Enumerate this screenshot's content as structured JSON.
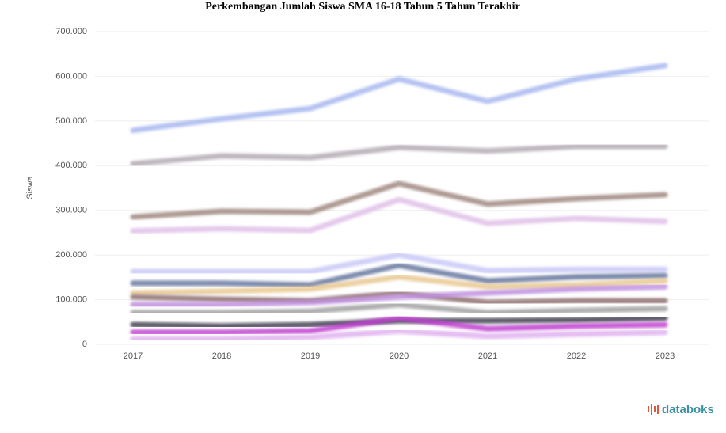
{
  "chart_data": {
    "type": "line",
    "title": "Perkembangan Jumlah Siswa SMA 16-18 Tahun 5 Tahun Terakhir",
    "y_label": "Siswa",
    "logo": "databoks",
    "categories": [
      "2017",
      "2018",
      "2019",
      "2020",
      "2021",
      "2022",
      "2023"
    ],
    "ylim": [
      0,
      700000
    ],
    "yticks": [
      0,
      {
        "value": 100000,
        "label": "100.000"
      },
      {
        "value": 200000,
        "label": "200.000"
      },
      {
        "value": 300000,
        "label": "300.000"
      },
      {
        "value": 400000,
        "label": "400.000"
      },
      {
        "value": 500000,
        "label": "500.000"
      },
      {
        "value": 600000,
        "label": "600.000"
      },
      {
        "value": 700000,
        "label": "700.000"
      }
    ],
    "grid": true,
    "series": [
      {
        "color": "#a8b8f0",
        "values": [
          479000,
          505000,
          528000,
          594000,
          544000,
          594000,
          624000
        ]
      },
      {
        "color": "#b4acb4",
        "values": [
          404000,
          422000,
          418000,
          441000,
          433000,
          443000,
          443000
        ]
      },
      {
        "color": "#a08880",
        "values": [
          285000,
          298000,
          296000,
          360000,
          314000,
          326000,
          335000
        ]
      },
      {
        "color": "#e0c0e8",
        "values": [
          254000,
          259000,
          255000,
          324000,
          271000,
          282000,
          275000
        ]
      },
      {
        "color": "#c8c8f8",
        "values": [
          163000,
          163000,
          163000,
          200000,
          165000,
          168000,
          168000
        ]
      },
      {
        "color": "#6878a0",
        "values": [
          137000,
          137000,
          133000,
          177000,
          142000,
          151000,
          154000
        ]
      },
      {
        "color": "#e8c890",
        "values": [
          115000,
          119000,
          124000,
          151000,
          129000,
          133000,
          142000
        ]
      },
      {
        "color": "#907070",
        "values": [
          106000,
          101000,
          97500,
          115000,
          94000,
          97500,
          97500
        ]
      },
      {
        "color": "#c090e0",
        "values": [
          89000,
          89000,
          94000,
          106000,
          115000,
          124000,
          129000
        ]
      },
      {
        "color": "#a0a0a0",
        "values": [
          71000,
          71000,
          74000,
          89000,
          71000,
          76000,
          80000
        ]
      },
      {
        "color": "#404050",
        "values": [
          44000,
          41000,
          44000,
          53000,
          53000,
          55000,
          59000
        ]
      },
      {
        "color": "#c040d0",
        "values": [
          27000,
          27000,
          30000,
          59000,
          35000,
          41000,
          44000
        ]
      },
      {
        "color": "#e0b0f0",
        "values": [
          12000,
          12000,
          16000,
          30000,
          18000,
          23000,
          27000
        ]
      }
    ]
  }
}
